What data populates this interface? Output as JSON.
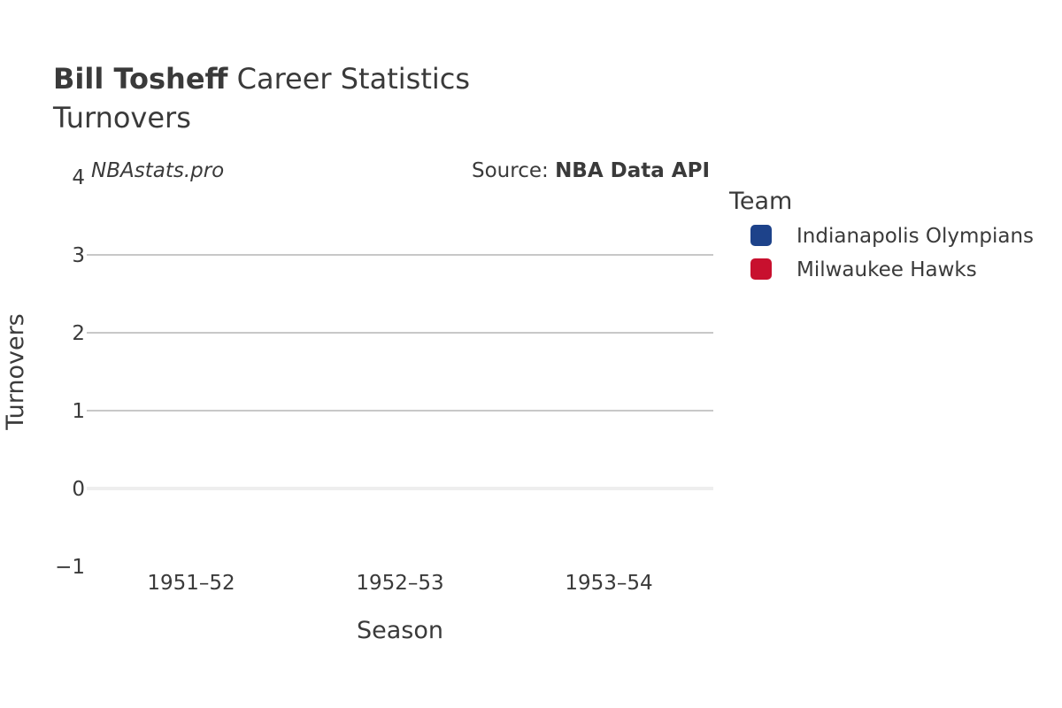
{
  "chart_data": {
    "type": "bar",
    "title": {
      "bold": "Bill Tosheff",
      "rest": " Career Statistics"
    },
    "subtitle": "Turnovers",
    "watermark": "NBAstats.pro",
    "source": {
      "prefix": "Source: ",
      "bold": "NBA Data API"
    },
    "xlabel": "Season",
    "ylabel": "Turnovers",
    "categories": [
      "1951–52",
      "1952–53",
      "1953–54"
    ],
    "yticks": [
      4,
      3,
      2,
      1,
      0,
      -1
    ],
    "ytick_labels": [
      "4",
      "3",
      "2",
      "1",
      "0",
      "−1"
    ],
    "ylim": [
      -1,
      4
    ],
    "grid": true,
    "legend": {
      "title": "Team",
      "position": "right"
    },
    "series": [
      {
        "name": "Indianapolis Olympians",
        "color": "#1d428a",
        "values": [
          null,
          null,
          null
        ]
      },
      {
        "name": "Milwaukee Hawks",
        "color": "#c8102e",
        "values": [
          null,
          null,
          null
        ]
      }
    ]
  }
}
